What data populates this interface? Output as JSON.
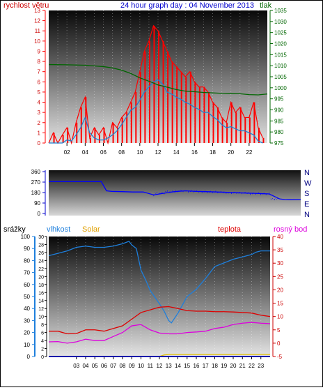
{
  "header": {
    "left_label": "rychlost větru",
    "title": "24 hour graph day : 04 November 2013",
    "right_label": "tlak"
  },
  "x_ticks_top": [
    "02",
    "04",
    "06",
    "08",
    "10",
    "12",
    "14",
    "16",
    "18",
    "20",
    "22"
  ],
  "x_ticks_bottom": [
    "03",
    "04",
    "05",
    "06",
    "07",
    "08",
    "09",
    "10",
    "11",
    "12",
    "13",
    "14",
    "15",
    "16",
    "17",
    "18",
    "19",
    "20",
    "21",
    "22",
    "23"
  ],
  "panel_labels": {
    "rain": "srážky",
    "humidity": "vlhkost",
    "solar": "Solar",
    "temperature": "teplota",
    "dewpoint": "rosný bod"
  },
  "compass": [
    "N",
    "W",
    "S",
    "E",
    "N"
  ],
  "colors": {
    "wind": "#ff0000",
    "wind_avg": "#2080d0",
    "pressure": "#006600",
    "direction": "#0000ff",
    "humidity": "#1e7fdc",
    "temperature": "#dd0000",
    "dewpoint": "#dd00dd",
    "solar": "#e0c000",
    "rain": "#0000aa",
    "title": "#0000cc",
    "left_label": "#cc0000",
    "right_label": "#006600"
  },
  "chart_data": [
    {
      "type": "line",
      "title": "24 hour graph day : 04 November 2013",
      "x_range": [
        0,
        24
      ],
      "y_left": {
        "label": "rychlost větru",
        "ylim": [
          0,
          13
        ],
        "ticks": [
          0,
          1,
          2,
          3,
          4,
          5,
          6,
          7,
          8,
          9,
          10,
          11,
          12,
          13
        ]
      },
      "y_right": {
        "label": "tlak",
        "ylim": [
          975,
          1035
        ],
        "ticks": [
          975,
          980,
          985,
          990,
          995,
          1000,
          1005,
          1010,
          1015,
          1020,
          1025,
          1030,
          1035
        ]
      },
      "series": [
        {
          "name": "rychlost větru",
          "axis": "left",
          "x": [
            0,
            0.5,
            1,
            1.5,
            2,
            2.5,
            3,
            3.5,
            4,
            4.5,
            5,
            5.5,
            6,
            6.5,
            7,
            7.5,
            8,
            8.5,
            9,
            9.5,
            10,
            10.5,
            11,
            11.5,
            12,
            12.5,
            13,
            13.5,
            14,
            14.5,
            15,
            15.5,
            16,
            16.5,
            17,
            17.5,
            18,
            18.5,
            19,
            19.5,
            20,
            20.5,
            21,
            21.5,
            22,
            22.5,
            23,
            23.5
          ],
          "values": [
            0,
            1,
            0,
            0.8,
            1.5,
            0,
            2,
            3.5,
            4.5,
            0.5,
            1.5,
            0.8,
            1.5,
            0,
            2,
            1.5,
            2.5,
            3,
            4,
            5,
            7,
            9,
            10,
            11.5,
            11,
            10,
            9,
            8,
            7.5,
            7,
            6.5,
            7,
            6,
            5.5,
            5.5,
            5,
            4,
            3.5,
            2.5,
            2,
            4,
            3,
            3.5,
            2.5,
            2.5,
            4,
            1.5,
            0.5
          ]
        },
        {
          "name": "",
          "axis": "left",
          "x": [
            0,
            0.5,
            1,
            1.5,
            2,
            2.5,
            3,
            3.5,
            4,
            4.5,
            5,
            5.5,
            6,
            6.5,
            7,
            7.5,
            8,
            8.5,
            9,
            9.5,
            10,
            10.5,
            11,
            11.5,
            12,
            12.5,
            13,
            13.5,
            14,
            14.5,
            15,
            15.5,
            16,
            16.5,
            17,
            17.5,
            18,
            18.5,
            19,
            19.5,
            20,
            20.5,
            21,
            21.5,
            22,
            22.5,
            23,
            23.5
          ],
          "values": [
            0,
            0,
            0,
            0,
            0.3,
            0.2,
            0.8,
            1.5,
            2.5,
            1,
            0.5,
            0.3,
            0.3,
            0.5,
            0.8,
            1.2,
            1.8,
            2.5,
            3.2,
            3.5,
            4.2,
            5,
            5.5,
            6,
            6.2,
            5.8,
            5,
            4.8,
            4.5,
            4.3,
            4,
            3.8,
            3.5,
            3.3,
            3,
            3,
            2.6,
            2.3,
            1.8,
            1.5,
            1.6,
            1.4,
            1.2,
            1.2,
            1,
            0.8,
            0.2,
            0
          ]
        },
        {
          "name": "tlak",
          "axis": "right",
          "x": [
            0,
            2,
            4,
            6,
            7,
            8,
            9,
            10,
            11,
            12,
            13,
            14,
            15,
            16,
            17,
            18,
            19,
            20,
            21,
            22,
            23,
            24
          ],
          "values": [
            1010.5,
            1010.4,
            1010.2,
            1009.6,
            1009,
            1008,
            1006.5,
            1004.5,
            1003,
            1001.3,
            1000.3,
            999.2,
            998.5,
            998.2,
            997.9,
            997.7,
            997.5,
            997.4,
            997.3,
            996.9,
            996.8,
            997.2
          ]
        }
      ]
    },
    {
      "type": "line",
      "y_left": {
        "ylim": [
          0,
          360
        ],
        "ticks": [
          0,
          90,
          180,
          270,
          360
        ]
      },
      "y_right_labels": [
        "N",
        "W",
        "S",
        "E",
        "N"
      ],
      "series": [
        {
          "name": "",
          "x": [
            0,
            1,
            2,
            3,
            4,
            5,
            5.5,
            6,
            7,
            8,
            9,
            10,
            11,
            12,
            13,
            14,
            15,
            16,
            17,
            18,
            19,
            20,
            21,
            22,
            22.5,
            23,
            24
          ],
          "values": [
            275,
            275,
            275,
            275,
            275,
            275,
            195,
            190,
            188,
            185,
            185,
            160,
            175,
            188,
            195,
            190,
            188,
            185,
            182,
            178,
            175,
            172,
            168,
            125,
            120,
            118,
            120
          ]
        }
      ]
    },
    {
      "type": "line",
      "x_range": [
        0,
        24
      ],
      "y_left_rain": {
        "label": "srážky",
        "ylim": [
          0,
          100
        ],
        "ticks": [
          0,
          10,
          20,
          30,
          40,
          50,
          60,
          70,
          80,
          90,
          100
        ]
      },
      "y_left_humidity": {
        "label": "vlhkost",
        "ylim": [
          0,
          30
        ],
        "ticks": [
          0,
          2,
          4,
          6,
          8,
          10,
          12,
          14,
          16,
          18,
          20,
          22,
          24,
          26,
          28,
          30
        ]
      },
      "y_right_temp": {
        "label": "teplota",
        "ylim": [
          -5,
          40
        ],
        "ticks": [
          -5,
          0,
          5,
          10,
          15,
          20,
          25,
          30,
          35,
          40
        ]
      },
      "series": [
        {
          "name": "vlhkost",
          "axis": "left_rain",
          "x": [
            0,
            1,
            2,
            3,
            4,
            5,
            6,
            7,
            8,
            8.7,
            9,
            9.5,
            10,
            10.5,
            11,
            12,
            12.5,
            13,
            13.3,
            14,
            15,
            16,
            17,
            18,
            19,
            20,
            21,
            22,
            22.5,
            23,
            24
          ],
          "values": [
            84,
            86,
            88,
            91,
            92,
            91,
            91,
            92,
            94,
            96,
            93,
            90,
            72,
            64,
            55,
            44,
            38,
            30,
            28,
            36,
            50,
            56,
            65,
            75,
            78,
            81,
            83,
            85,
            87,
            88,
            88
          ]
        },
        {
          "name": "teplota",
          "axis": "right_temp",
          "x": [
            0,
            1,
            2,
            3,
            4,
            5,
            6,
            7,
            8,
            9,
            10,
            11,
            12,
            13,
            14,
            15,
            16,
            17,
            18,
            19,
            20,
            21,
            22,
            23,
            24
          ],
          "values": [
            4.5,
            4.5,
            3.5,
            3.6,
            5,
            5,
            4.5,
            5.5,
            6.5,
            9,
            11.5,
            12.5,
            13.5,
            13.7,
            13,
            12.2,
            12,
            12,
            11.8,
            11.8,
            11.7,
            11.5,
            11.3,
            10.5,
            10
          ]
        },
        {
          "name": "rosný bod",
          "axis": "right_temp",
          "x": [
            0,
            1,
            2,
            3,
            4,
            5,
            6,
            7,
            8,
            9,
            10,
            11,
            12,
            13,
            14,
            15,
            16,
            17,
            18,
            19,
            20,
            21,
            22,
            23,
            24
          ],
          "values": [
            0.5,
            0.6,
            0,
            0.5,
            1.5,
            1,
            1,
            2.5,
            4,
            6.5,
            7,
            5,
            3.8,
            3.5,
            3.5,
            4,
            4.2,
            4.5,
            5.5,
            6,
            7,
            7.5,
            7.8,
            7.5,
            7.3
          ]
        },
        {
          "name": "Solar",
          "axis": "left_humidity",
          "x": [
            0,
            12,
            12.5,
            13,
            14,
            15,
            16,
            17,
            18,
            19,
            20,
            21,
            22,
            23,
            24
          ],
          "values": [
            0,
            0,
            0.4,
            0.5,
            0.5,
            0.5,
            0.5,
            0.5,
            0.5,
            0.5,
            0.5,
            0.5,
            0.5,
            0.5,
            0.5
          ]
        },
        {
          "name": "srážky",
          "axis": "left_rain",
          "x": [
            0,
            24
          ],
          "values": [
            0,
            0
          ]
        }
      ]
    }
  ]
}
